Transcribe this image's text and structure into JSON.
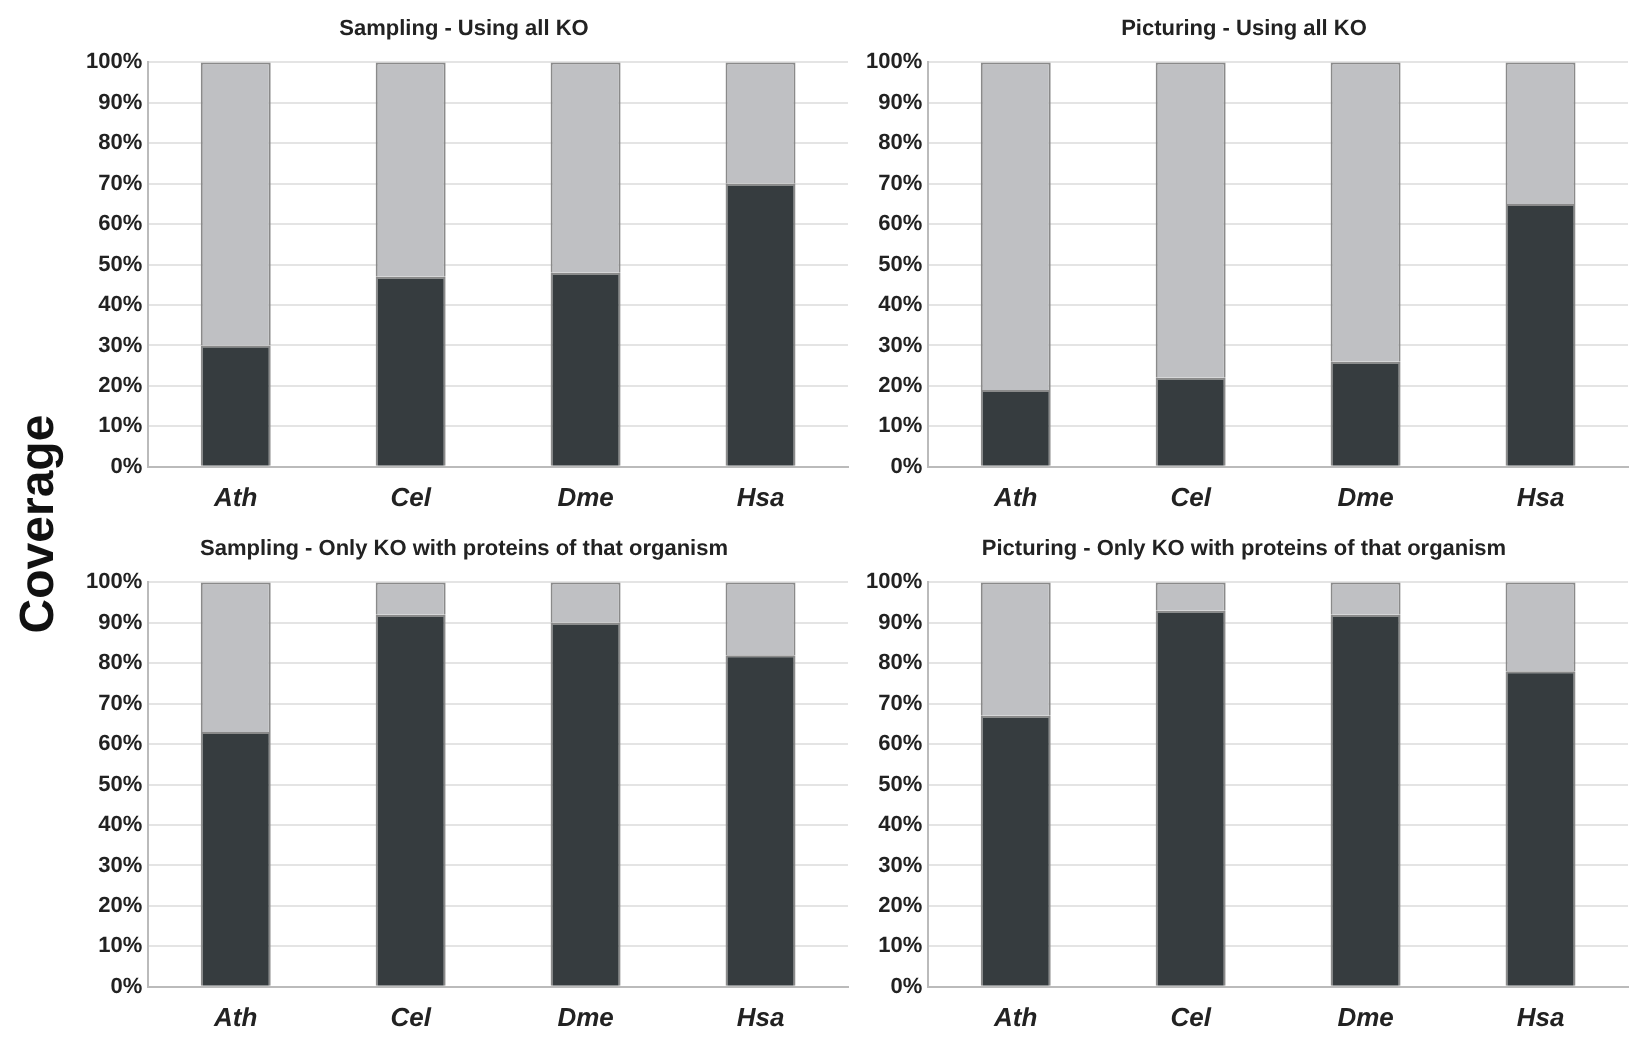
{
  "chart_data": [
    {
      "type": "bar",
      "title": "Sampling - Using all KO",
      "ylabel": "Coverage",
      "categories": [
        "Ath",
        "Cel",
        "Dme",
        "Hsa"
      ],
      "stacked": true,
      "grid": "y",
      "legend": false,
      "ylim": [
        0,
        100
      ],
      "yticks": [
        {
          "value": 0,
          "label": "0%"
        },
        {
          "value": 10,
          "label": "10%"
        },
        {
          "value": 20,
          "label": "20%"
        },
        {
          "value": 30,
          "label": "30%"
        },
        {
          "value": 40,
          "label": "40%"
        },
        {
          "value": 50,
          "label": "50%"
        },
        {
          "value": 60,
          "label": "60%"
        },
        {
          "value": 70,
          "label": "70%"
        },
        {
          "value": 80,
          "label": "80%"
        },
        {
          "value": 90,
          "label": "90%"
        },
        {
          "value": 100,
          "label": "100%"
        }
      ],
      "series": [
        {
          "color": "#363c3f",
          "values": [
            30,
            47,
            48,
            70
          ]
        },
        {
          "color": "#bfc0c3",
          "values": [
            70,
            53,
            52,
            30
          ]
        }
      ]
    },
    {
      "type": "bar",
      "title": "Picturing - Using all KO",
      "categories": [
        "Ath",
        "Cel",
        "Dme",
        "Hsa"
      ],
      "stacked": true,
      "grid": "y",
      "legend": false,
      "ylim": [
        0,
        100
      ],
      "yticks": [
        {
          "value": 0,
          "label": "0%"
        },
        {
          "value": 10,
          "label": "10%"
        },
        {
          "value": 20,
          "label": "20%"
        },
        {
          "value": 30,
          "label": "30%"
        },
        {
          "value": 40,
          "label": "40%"
        },
        {
          "value": 50,
          "label": "50%"
        },
        {
          "value": 60,
          "label": "60%"
        },
        {
          "value": 70,
          "label": "70%"
        },
        {
          "value": 80,
          "label": "80%"
        },
        {
          "value": 90,
          "label": "90%"
        },
        {
          "value": 100,
          "label": "100%"
        }
      ],
      "series": [
        {
          "color": "#363c3f",
          "values": [
            19,
            22,
            26,
            65
          ]
        },
        {
          "color": "#bfc0c3",
          "values": [
            81,
            78,
            74,
            35
          ]
        }
      ]
    },
    {
      "type": "bar",
      "title": "Sampling - Only KO with proteins of that organism",
      "categories": [
        "Ath",
        "Cel",
        "Dme",
        "Hsa"
      ],
      "stacked": true,
      "grid": "y",
      "legend": false,
      "ylim": [
        0,
        100
      ],
      "yticks": [
        {
          "value": 0,
          "label": "0%"
        },
        {
          "value": 10,
          "label": "10%"
        },
        {
          "value": 20,
          "label": "20%"
        },
        {
          "value": 30,
          "label": "30%"
        },
        {
          "value": 40,
          "label": "40%"
        },
        {
          "value": 50,
          "label": "50%"
        },
        {
          "value": 60,
          "label": "60%"
        },
        {
          "value": 70,
          "label": "70%"
        },
        {
          "value": 80,
          "label": "80%"
        },
        {
          "value": 90,
          "label": "90%"
        },
        {
          "value": 100,
          "label": "100%"
        }
      ],
      "series": [
        {
          "color": "#363c3f",
          "values": [
            63,
            92,
            90,
            82
          ]
        },
        {
          "color": "#bfc0c3",
          "values": [
            37,
            8,
            10,
            18
          ]
        }
      ]
    },
    {
      "type": "bar",
      "title": "Picturing - Only KO with proteins of that organism",
      "categories": [
        "Ath",
        "Cel",
        "Dme",
        "Hsa"
      ],
      "stacked": true,
      "grid": "y",
      "legend": false,
      "ylim": [
        0,
        100
      ],
      "yticks": [
        {
          "value": 0,
          "label": "0%"
        },
        {
          "value": 10,
          "label": "10%"
        },
        {
          "value": 20,
          "label": "20%"
        },
        {
          "value": 30,
          "label": "30%"
        },
        {
          "value": 40,
          "label": "40%"
        },
        {
          "value": 50,
          "label": "50%"
        },
        {
          "value": 60,
          "label": "60%"
        },
        {
          "value": 70,
          "label": "70%"
        },
        {
          "value": 80,
          "label": "80%"
        },
        {
          "value": 90,
          "label": "90%"
        },
        {
          "value": 100,
          "label": "100%"
        }
      ],
      "series": [
        {
          "color": "#363c3f",
          "values": [
            67,
            93,
            92,
            78
          ]
        },
        {
          "color": "#bfc0c3",
          "values": [
            33,
            7,
            8,
            22
          ]
        }
      ]
    }
  ]
}
